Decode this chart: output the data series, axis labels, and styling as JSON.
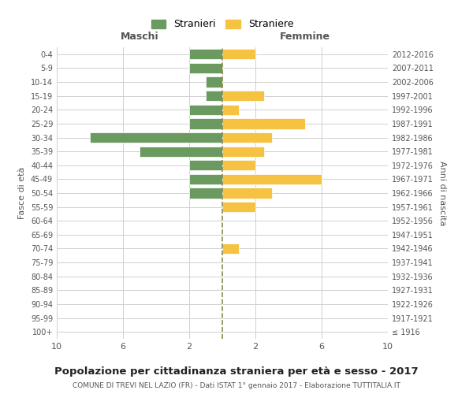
{
  "age_groups": [
    "100+",
    "95-99",
    "90-94",
    "85-89",
    "80-84",
    "75-79",
    "70-74",
    "65-69",
    "60-64",
    "55-59",
    "50-54",
    "45-49",
    "40-44",
    "35-39",
    "30-34",
    "25-29",
    "20-24",
    "15-19",
    "10-14",
    "5-9",
    "0-4"
  ],
  "birth_years": [
    "≤ 1916",
    "1917-1921",
    "1922-1926",
    "1927-1931",
    "1932-1936",
    "1937-1941",
    "1942-1946",
    "1947-1951",
    "1952-1956",
    "1957-1961",
    "1962-1966",
    "1967-1971",
    "1972-1976",
    "1977-1981",
    "1982-1986",
    "1987-1991",
    "1992-1996",
    "1997-2001",
    "2002-2006",
    "2007-2011",
    "2012-2016"
  ],
  "maschi": [
    0,
    0,
    0,
    0,
    0,
    0,
    0,
    0,
    0,
    0,
    2,
    2,
    2,
    5,
    8,
    2,
    2,
    1,
    1,
    2,
    2
  ],
  "femmine": [
    0,
    0,
    0,
    0,
    0,
    0,
    1,
    0,
    0,
    2,
    3,
    6,
    2,
    2.5,
    3,
    5,
    1,
    2.5,
    0,
    0,
    2
  ],
  "color_maschi": "#6a9a5f",
  "color_femmine": "#f5c242",
  "color_dashed_line": "#8a8a4a",
  "bg_color": "#ffffff",
  "grid_color": "#d0d0d0",
  "title": "Popolazione per cittadinanza straniera per età e sesso - 2017",
  "subtitle": "COMUNE DI TREVI NEL LAZIO (FR) - Dati ISTAT 1° gennaio 2017 - Elaborazione TUTTITALIA.IT",
  "xlabel_left": "Maschi",
  "xlabel_right": "Femmine",
  "ylabel_left": "Fasce di età",
  "ylabel_right": "Anni di nascita",
  "legend_maschi": "Stranieri",
  "legend_femmine": "Straniere",
  "xlim": 10,
  "xticks": [
    10,
    6,
    2,
    2,
    6,
    10
  ],
  "xtick_labels": [
    "10",
    "6",
    "2",
    "2",
    "6",
    "10"
  ]
}
